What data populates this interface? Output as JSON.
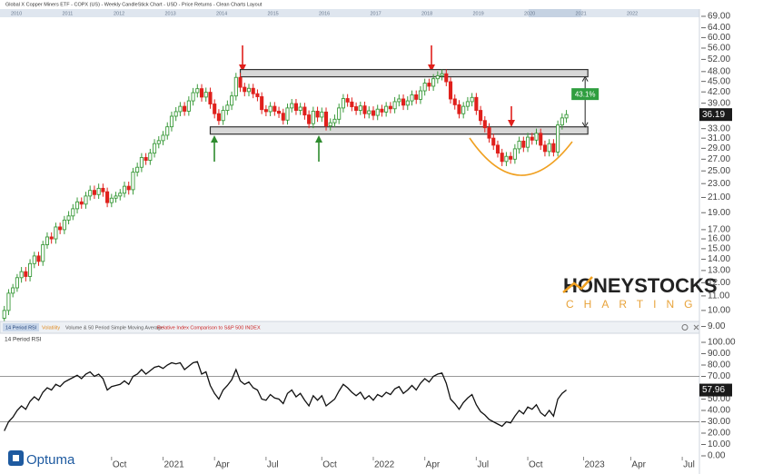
{
  "ui": {
    "title": "Global X Copper Miners ETF - COPX (US) - Weekly CandleStick Chart - USD - Price Returns - Clean Charts Layout",
    "navigator_years": [
      "2010",
      "2011",
      "2012",
      "2013",
      "2014",
      "2015",
      "2016",
      "2017",
      "2018",
      "2019",
      "2020",
      "2021",
      "2022"
    ],
    "tabs": [
      "14 Period RSI",
      "Volatility",
      "Volume & 50 Period Simple Moving Average",
      "Relative Index Comparison to S&P 500 INDEX"
    ],
    "watermark": "HONEYSTOCKS",
    "watermark_sub": "CHARTING",
    "brand": "Optuma"
  },
  "chart_data": [
    {
      "type": "candlestick",
      "log_scale": true,
      "up_color": "#3a9a3a",
      "down_color": "#e0201c",
      "xlim": [
        -1,
        162
      ],
      "ylim": [
        8.66,
        71.5
      ],
      "yticks": [
        {
          "value": 69,
          "label": "69.00"
        },
        {
          "value": 64,
          "label": "64.00"
        },
        {
          "value": 60,
          "label": "60.00"
        },
        {
          "value": 56,
          "label": "56.00"
        },
        {
          "value": 52,
          "label": "52.00"
        },
        {
          "value": 48,
          "label": "48.00"
        },
        {
          "value": 45,
          "label": "45.00"
        },
        {
          "value": 42,
          "label": "42.00"
        },
        {
          "value": 39,
          "label": "39.00"
        },
        {
          "value": 36,
          "label": "36.00"
        },
        {
          "value": 33,
          "label": "33.00"
        },
        {
          "value": 31,
          "label": "31.00"
        },
        {
          "value": 29,
          "label": "29.00"
        },
        {
          "value": 27,
          "label": "27.00"
        },
        {
          "value": 25,
          "label": "25.00"
        },
        {
          "value": 23,
          "label": "23.00"
        },
        {
          "value": 21,
          "label": "21.00"
        },
        {
          "value": 19,
          "label": "19.00"
        },
        {
          "value": 17,
          "label": "17.00"
        },
        {
          "value": 16,
          "label": "16.00"
        },
        {
          "value": 15,
          "label": "15.00"
        },
        {
          "value": 14,
          "label": "14.00"
        },
        {
          "value": 13,
          "label": "13.00"
        },
        {
          "value": 12,
          "label": "12.00"
        },
        {
          "value": 11,
          "label": "11.00"
        },
        {
          "value": 10,
          "label": "10.00"
        },
        {
          "value": 9,
          "label": "9.00"
        }
      ],
      "channel": [
        {
          "level": 47.5,
          "from": 55,
          "to": 136
        },
        {
          "level": 32.6,
          "from": 48,
          "to": 136
        }
      ],
      "range_label": "43.1%",
      "candles": [
        [
          9.5,
          10.3,
          9.2,
          10.0
        ],
        [
          10.0,
          11.5,
          9.7,
          11.2
        ],
        [
          11.2,
          11.9,
          10.9,
          11.6
        ],
        [
          11.6,
          12.7,
          11.3,
          12.4
        ],
        [
          12.4,
          13.3,
          12.0,
          12.9
        ],
        [
          12.9,
          13.3,
          12.1,
          12.5
        ],
        [
          12.5,
          14.0,
          12.1,
          13.6
        ],
        [
          13.6,
          14.7,
          13.2,
          14.3
        ],
        [
          14.3,
          14.7,
          13.4,
          13.8
        ],
        [
          13.8,
          15.8,
          13.4,
          15.4
        ],
        [
          15.4,
          16.7,
          15.0,
          16.2
        ],
        [
          16.2,
          16.7,
          15.5,
          16.0
        ],
        [
          16.0,
          17.8,
          15.5,
          17.3
        ],
        [
          17.3,
          17.8,
          16.5,
          17.0
        ],
        [
          17.0,
          18.6,
          16.5,
          18.1
        ],
        [
          18.1,
          19.2,
          17.6,
          18.6
        ],
        [
          18.6,
          20.1,
          18.1,
          19.5
        ],
        [
          19.5,
          21.0,
          18.9,
          20.4
        ],
        [
          20.4,
          21.0,
          19.5,
          20.1
        ],
        [
          20.1,
          21.8,
          19.5,
          21.2
        ],
        [
          21.2,
          22.7,
          20.6,
          22.0
        ],
        [
          22.0,
          22.7,
          20.8,
          21.4
        ],
        [
          21.4,
          23.0,
          20.8,
          22.3
        ],
        [
          22.3,
          23.0,
          21.1,
          21.8
        ],
        [
          21.8,
          22.4,
          19.7,
          20.3
        ],
        [
          20.3,
          21.5,
          19.7,
          20.9
        ],
        [
          20.9,
          21.8,
          20.3,
          21.2
        ],
        [
          21.2,
          22.2,
          20.6,
          21.6
        ],
        [
          21.6,
          23.3,
          21.0,
          22.6
        ],
        [
          22.6,
          23.3,
          21.4,
          22.1
        ],
        [
          22.1,
          25.5,
          21.4,
          24.8
        ],
        [
          24.8,
          26.4,
          24.1,
          25.6
        ],
        [
          25.6,
          28.1,
          24.8,
          27.3
        ],
        [
          27.3,
          28.1,
          26.0,
          26.8
        ],
        [
          26.8,
          28.9,
          26.0,
          28.1
        ],
        [
          28.1,
          30.8,
          27.3,
          29.9
        ],
        [
          29.9,
          31.4,
          29.0,
          30.5
        ],
        [
          30.5,
          32.5,
          29.6,
          31.6
        ],
        [
          31.6,
          34.4,
          30.7,
          33.4
        ],
        [
          33.4,
          36.9,
          32.4,
          35.8
        ],
        [
          35.8,
          38.0,
          34.7,
          36.9
        ],
        [
          36.9,
          39.3,
          35.8,
          38.2
        ],
        [
          38.2,
          39.3,
          35.9,
          37.0
        ],
        [
          37.0,
          40.8,
          35.9,
          39.6
        ],
        [
          39.6,
          43.1,
          38.4,
          41.8
        ],
        [
          41.8,
          44.2,
          40.5,
          42.9
        ],
        [
          42.9,
          44.2,
          39.4,
          40.6
        ],
        [
          40.6,
          43.2,
          39.4,
          41.9
        ],
        [
          41.9,
          43.2,
          37.6,
          38.8
        ],
        [
          38.8,
          40.0,
          35.3,
          36.4
        ],
        [
          36.4,
          37.5,
          33.8,
          34.8
        ],
        [
          34.8,
          38.3,
          33.8,
          37.2
        ],
        [
          37.2,
          39.7,
          36.1,
          38.5
        ],
        [
          38.5,
          42.1,
          37.3,
          40.9
        ],
        [
          40.9,
          47.6,
          39.7,
          46.2
        ],
        [
          46.2,
          47.6,
          42.0,
          43.3
        ],
        [
          43.3,
          44.6,
          40.8,
          42.1
        ],
        [
          42.1,
          44.3,
          40.8,
          43.0
        ],
        [
          43.0,
          44.3,
          40.3,
          41.5
        ],
        [
          41.5,
          42.7,
          39.5,
          40.7
        ],
        [
          40.7,
          41.9,
          36.3,
          37.4
        ],
        [
          37.4,
          38.5,
          35.8,
          36.9
        ],
        [
          36.9,
          39.3,
          35.8,
          38.2
        ],
        [
          38.2,
          39.3,
          35.9,
          37.0
        ],
        [
          37.0,
          38.1,
          35.4,
          36.5
        ],
        [
          36.5,
          37.6,
          33.9,
          34.9
        ],
        [
          34.9,
          38.9,
          33.9,
          37.8
        ],
        [
          37.8,
          40.1,
          36.7,
          38.9
        ],
        [
          38.9,
          40.1,
          36.1,
          37.2
        ],
        [
          37.2,
          39.1,
          36.1,
          38.0
        ],
        [
          38.0,
          39.1,
          35.0,
          36.1
        ],
        [
          36.1,
          37.2,
          33.1,
          34.1
        ],
        [
          34.1,
          38.1,
          33.1,
          37.0
        ],
        [
          37.0,
          38.1,
          34.5,
          35.6
        ],
        [
          35.6,
          37.9,
          34.5,
          36.8
        ],
        [
          36.8,
          37.9,
          32.6,
          33.6
        ],
        [
          33.6,
          35.3,
          32.6,
          34.3
        ],
        [
          34.3,
          36.2,
          33.3,
          35.1
        ],
        [
          35.1,
          38.9,
          34.0,
          37.8
        ],
        [
          37.8,
          41.4,
          36.7,
          40.2
        ],
        [
          40.2,
          41.4,
          38.1,
          39.3
        ],
        [
          39.3,
          40.5,
          37.0,
          38.1
        ],
        [
          38.1,
          39.2,
          36.1,
          37.2
        ],
        [
          37.2,
          39.4,
          36.1,
          38.3
        ],
        [
          38.3,
          39.4,
          35.3,
          36.4
        ],
        [
          36.4,
          38.2,
          35.3,
          37.1
        ],
        [
          37.1,
          38.2,
          34.9,
          36.0
        ],
        [
          36.0,
          38.6,
          34.9,
          37.5
        ],
        [
          37.5,
          38.6,
          35.7,
          36.8
        ],
        [
          36.8,
          39.3,
          35.7,
          38.2
        ],
        [
          38.2,
          39.3,
          36.5,
          37.6
        ],
        [
          37.6,
          40.6,
          36.5,
          39.4
        ],
        [
          39.4,
          41.3,
          38.2,
          40.1
        ],
        [
          40.1,
          41.3,
          37.3,
          38.5
        ],
        [
          38.5,
          40.8,
          37.3,
          39.6
        ],
        [
          39.6,
          42.4,
          38.4,
          41.2
        ],
        [
          41.2,
          42.4,
          38.8,
          40.0
        ],
        [
          40.0,
          43.6,
          38.8,
          42.3
        ],
        [
          42.3,
          45.8,
          41.0,
          44.5
        ],
        [
          44.5,
          45.8,
          42.3,
          43.6
        ],
        [
          43.6,
          47.2,
          42.3,
          45.8
        ],
        [
          45.8,
          48.1,
          44.4,
          46.7
        ],
        [
          46.7,
          48.7,
          45.3,
          47.3
        ],
        [
          47.3,
          48.7,
          43.6,
          44.9
        ],
        [
          44.9,
          46.2,
          38.9,
          40.1
        ],
        [
          40.1,
          41.3,
          37.4,
          38.6
        ],
        [
          38.6,
          39.8,
          35.3,
          36.4
        ],
        [
          36.4,
          39.3,
          35.3,
          38.2
        ],
        [
          38.2,
          40.6,
          37.1,
          39.4
        ],
        [
          39.4,
          41.7,
          38.2,
          40.5
        ],
        [
          40.5,
          41.7,
          36.1,
          37.2
        ],
        [
          37.2,
          38.3,
          33.8,
          34.8
        ],
        [
          34.8,
          35.8,
          32.2,
          33.2
        ],
        [
          33.2,
          34.2,
          30.1,
          31.0
        ],
        [
          31.0,
          31.9,
          28.7,
          29.6
        ],
        [
          29.6,
          30.5,
          27.3,
          28.1
        ],
        [
          28.1,
          28.9,
          25.8,
          26.6
        ],
        [
          26.6,
          28.3,
          25.8,
          27.5
        ],
        [
          27.5,
          28.3,
          26.2,
          27.0
        ],
        [
          27.0,
          29.8,
          26.2,
          28.9
        ],
        [
          28.9,
          31.3,
          28.0,
          30.4
        ],
        [
          30.4,
          31.3,
          28.3,
          29.2
        ],
        [
          29.2,
          32.1,
          28.3,
          31.2
        ],
        [
          31.2,
          32.1,
          29.7,
          30.6
        ],
        [
          30.6,
          33.0,
          29.7,
          32.0
        ],
        [
          32.0,
          33.0,
          28.7,
          29.6
        ],
        [
          29.6,
          30.5,
          27.5,
          28.4
        ],
        [
          28.4,
          30.8,
          27.5,
          29.9
        ],
        [
          29.9,
          30.8,
          27.5,
          28.3
        ],
        [
          28.3,
          34.8,
          27.5,
          33.8
        ],
        [
          33.8,
          36.5,
          32.8,
          35.4
        ],
        [
          35.4,
          37.3,
          34.3,
          36.19
        ]
      ]
    },
    {
      "type": "line",
      "title": "14 Period RSI",
      "color": "#111111",
      "xlim": [
        -1,
        162
      ],
      "ylim": [
        -10.4,
        107.2
      ],
      "yticks": [
        {
          "value": 100,
          "label": "100.00"
        },
        {
          "value": 90,
          "label": "90.00"
        },
        {
          "value": 80,
          "label": "80.00"
        },
        {
          "value": 70,
          "label": "70.00"
        },
        {
          "value": 60,
          "label": "60.00"
        },
        {
          "value": 50,
          "label": "50.00"
        },
        {
          "value": 40,
          "label": "40.00"
        },
        {
          "value": 30,
          "label": "30.00"
        },
        {
          "value": 20,
          "label": "20.00"
        },
        {
          "value": 10,
          "label": "10.00"
        },
        {
          "value": 0,
          "label": "0.00"
        }
      ],
      "levels": [
        70,
        30
      ],
      "xticks": [
        {
          "value": 25,
          "label": "Oct"
        },
        {
          "value": 37,
          "label": "2021"
        },
        {
          "value": 49,
          "label": "Apr"
        },
        {
          "value": 61,
          "label": "Jul"
        },
        {
          "value": 74,
          "label": "Oct"
        },
        {
          "value": 86,
          "label": "2022"
        },
        {
          "value": 98,
          "label": "Apr"
        },
        {
          "value": 110,
          "label": "Jul"
        },
        {
          "value": 122,
          "label": "Oct"
        },
        {
          "value": 135,
          "label": "2023"
        },
        {
          "value": 146,
          "label": "Apr"
        },
        {
          "value": 158,
          "label": "Jul"
        }
      ],
      "values": [
        22,
        30,
        34,
        40,
        44,
        41,
        48,
        52,
        49,
        56,
        60,
        58,
        63,
        61,
        65,
        67,
        69,
        71,
        68,
        72,
        74,
        70,
        72,
        68,
        58,
        61,
        62,
        63,
        66,
        63,
        70,
        72,
        76,
        72,
        75,
        78,
        79,
        77,
        80,
        82,
        81,
        82,
        76,
        79,
        82,
        83,
        72,
        74,
        62,
        55,
        50,
        58,
        62,
        67,
        76,
        66,
        63,
        65,
        60,
        58,
        50,
        49,
        54,
        51,
        50,
        46,
        55,
        58,
        52,
        55,
        49,
        44,
        53,
        49,
        53,
        44,
        47,
        50,
        57,
        63,
        60,
        56,
        53,
        56,
        50,
        53,
        49,
        54,
        52,
        56,
        54,
        59,
        61,
        55,
        58,
        62,
        58,
        64,
        68,
        65,
        70,
        72,
        73,
        64,
        50,
        46,
        41,
        47,
        51,
        54,
        45,
        39,
        36,
        32,
        30,
        28,
        26,
        30,
        29,
        35,
        40,
        37,
        43,
        41,
        45,
        38,
        35,
        40,
        35,
        50,
        55,
        57.96
      ]
    }
  ]
}
